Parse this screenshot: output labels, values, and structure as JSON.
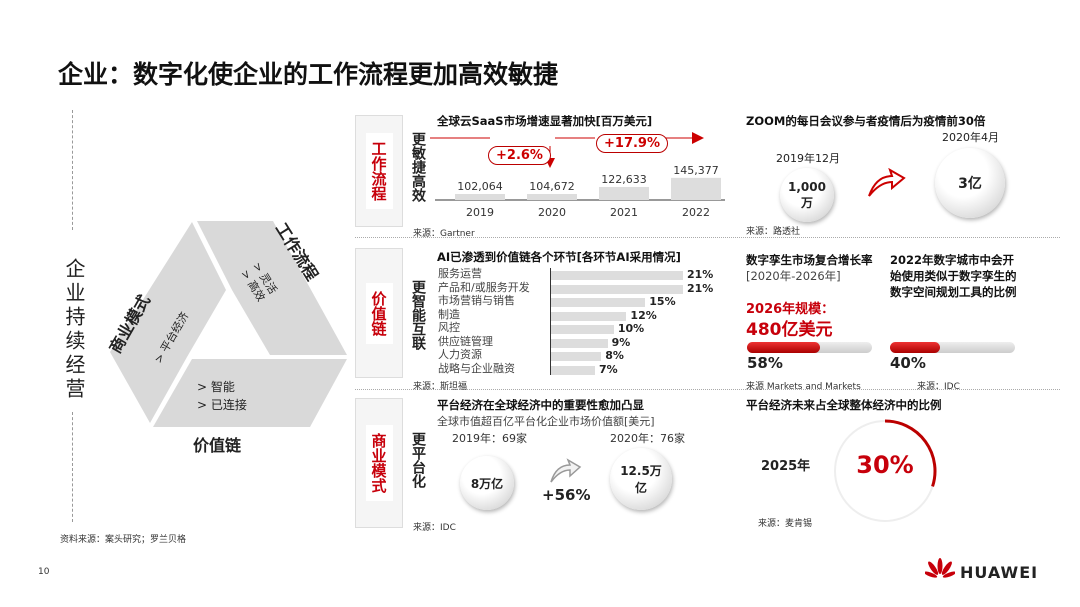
{
  "title": "企业：数字化使企业的工作流程更加高效敏捷",
  "left": {
    "vertical_label": "企业持续经营",
    "source": "资料来源：案头研究；罗兰贝格",
    "triangle": {
      "workflow": {
        "label": "工作流程",
        "items": [
          "> 灵活",
          "> 高效"
        ]
      },
      "business": {
        "label": "商业模式",
        "items": [
          "> 平台经济"
        ]
      },
      "value_chain": {
        "label": "价值链",
        "items": [
          "> 智能",
          "> 已连接"
        ]
      }
    }
  },
  "panels": [
    {
      "tag": "工作流程",
      "side": "更敏捷高效",
      "saas": {
        "title": "全球云SaaS市场增速显著加快[百万美元]",
        "growth1": "+2.6%",
        "growth2": "+17.9%",
        "source": "来源：Gartner"
      },
      "zoom": {
        "title": "ZOOM的每日会议参与者疫情后为疫情前30倍",
        "from_date": "2019年12月",
        "from_value": "1,000万",
        "to_date": "2020年4月",
        "to_value": "3亿",
        "source": "来源：路透社"
      }
    },
    {
      "tag": "价值链",
      "side": "更智能互联",
      "ai": {
        "title": "AI已渗透到价值链各个环节[各环节AI采用情况]",
        "source": "来源：斯坦福"
      },
      "twin": {
        "title1": "数字孪生市场复合增长率",
        "title2": "[2020年-2026年]",
        "scale_label": "2026年规模：",
        "scale_value": "480亿美元",
        "percent": "58%",
        "source": "来源 Markets and Markets"
      },
      "city": {
        "title": "2022年数字城市中会开始使用类似于数字孪生的数字空间规划工具的比例",
        "percent": "40%",
        "source": "来源：IDC"
      }
    },
    {
      "tag": "商业模式",
      "side": "更平台化",
      "platform": {
        "title": "平台经济在全球经济中的重要性愈加凸显",
        "subtitle": "全球市值超百亿平台化企业市场价值额[美元]",
        "y1": "2019年：69家",
        "v1": "8万亿",
        "y2": "2020年：76家",
        "v2": "12.5万亿",
        "growth": "+56%",
        "source": "来源：IDC"
      },
      "share": {
        "title": "平台经济未来占全球整体经济中的比例",
        "year": "2025年",
        "value": "30%",
        "source": "来源：麦肯锡"
      }
    }
  ],
  "chart_data": [
    {
      "type": "bar",
      "title": "全球云SaaS市场增速显著加快[百万美元]",
      "categories": [
        "2019",
        "2020",
        "2021",
        "2022"
      ],
      "values": [
        102064,
        104672,
        122633,
        145377
      ],
      "labels": [
        "102,064",
        "104,672",
        "122,633",
        "145,377"
      ]
    },
    {
      "type": "bar",
      "orientation": "horizontal",
      "title": "AI已渗透到价值链各个环节[各环节AI采用情况]",
      "categories": [
        "服务运营",
        "产品和/或服务开发",
        "市场营销与销售",
        "制造",
        "风控",
        "供应链管理",
        "人力资源",
        "战略与企业融资"
      ],
      "values": [
        21,
        21,
        15,
        12,
        10,
        9,
        8,
        7
      ],
      "labels": [
        "21%",
        "21%",
        "15%",
        "12%",
        "10%",
        "9%",
        "8%",
        "7%"
      ]
    }
  ],
  "progress": {
    "twin": 0.58,
    "city": 0.4,
    "share": 0.3
  },
  "colors": {
    "accent": "#c7000b",
    "bar": "#dddddd"
  },
  "footer": {
    "page": "10",
    "brand": "HUAWEI"
  }
}
